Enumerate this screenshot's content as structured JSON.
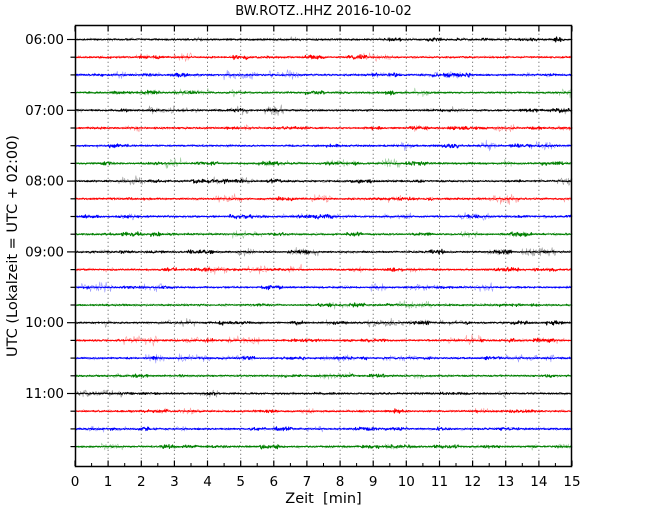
{
  "chart_data": {
    "type": "line",
    "subtype": "seismogram-dayplot",
    "title": "BW.ROTZ..HHZ 2016-10-02",
    "station": "BW.ROTZ..HHZ",
    "date": "2016-10-02",
    "xlabel": "Zeit  [min]",
    "ylabel": "UTC (Lokalzeit = UTC + 02:00)",
    "xlim": [
      0,
      15
    ],
    "xticks": [
      0,
      1,
      2,
      3,
      4,
      5,
      6,
      7,
      8,
      9,
      10,
      11,
      12,
      13,
      14,
      15
    ],
    "x_minor_tick_step": 0.5,
    "minutes_per_line": 15,
    "grid": {
      "style": "vertical dotted line at every minute",
      "color": "#555555"
    },
    "legend": "none",
    "hour_labels": [
      "06:00",
      "07:00",
      "08:00",
      "09:00",
      "10:00",
      "11:00"
    ],
    "line_colors_cycle": [
      "#000000",
      "#ff0000",
      "#0000ff",
      "#008000"
    ],
    "traces": [
      {
        "start": "06:00",
        "color": "#000000"
      },
      {
        "start": "06:15",
        "color": "#ff0000"
      },
      {
        "start": "06:30",
        "color": "#0000ff"
      },
      {
        "start": "06:45",
        "color": "#008000"
      },
      {
        "start": "07:00",
        "color": "#000000"
      },
      {
        "start": "07:15",
        "color": "#ff0000"
      },
      {
        "start": "07:30",
        "color": "#0000ff"
      },
      {
        "start": "07:45",
        "color": "#008000"
      },
      {
        "start": "08:00",
        "color": "#000000"
      },
      {
        "start": "08:15",
        "color": "#ff0000"
      },
      {
        "start": "08:30",
        "color": "#0000ff"
      },
      {
        "start": "08:45",
        "color": "#008000"
      },
      {
        "start": "09:00",
        "color": "#000000"
      },
      {
        "start": "09:15",
        "color": "#ff0000"
      },
      {
        "start": "09:30",
        "color": "#0000ff"
      },
      {
        "start": "09:45",
        "color": "#008000"
      },
      {
        "start": "10:00",
        "color": "#000000"
      },
      {
        "start": "10:15",
        "color": "#ff0000"
      },
      {
        "start": "10:30",
        "color": "#0000ff"
      },
      {
        "start": "10:45",
        "color": "#008000"
      },
      {
        "start": "11:00",
        "color": "#000000"
      },
      {
        "start": "11:15",
        "color": "#ff0000"
      },
      {
        "start": "11:30",
        "color": "#0000ff"
      },
      {
        "start": "11:45",
        "color": "#008000"
      }
    ],
    "content": "continuous low-amplitude background seismic noise on every line; no visible events"
  }
}
